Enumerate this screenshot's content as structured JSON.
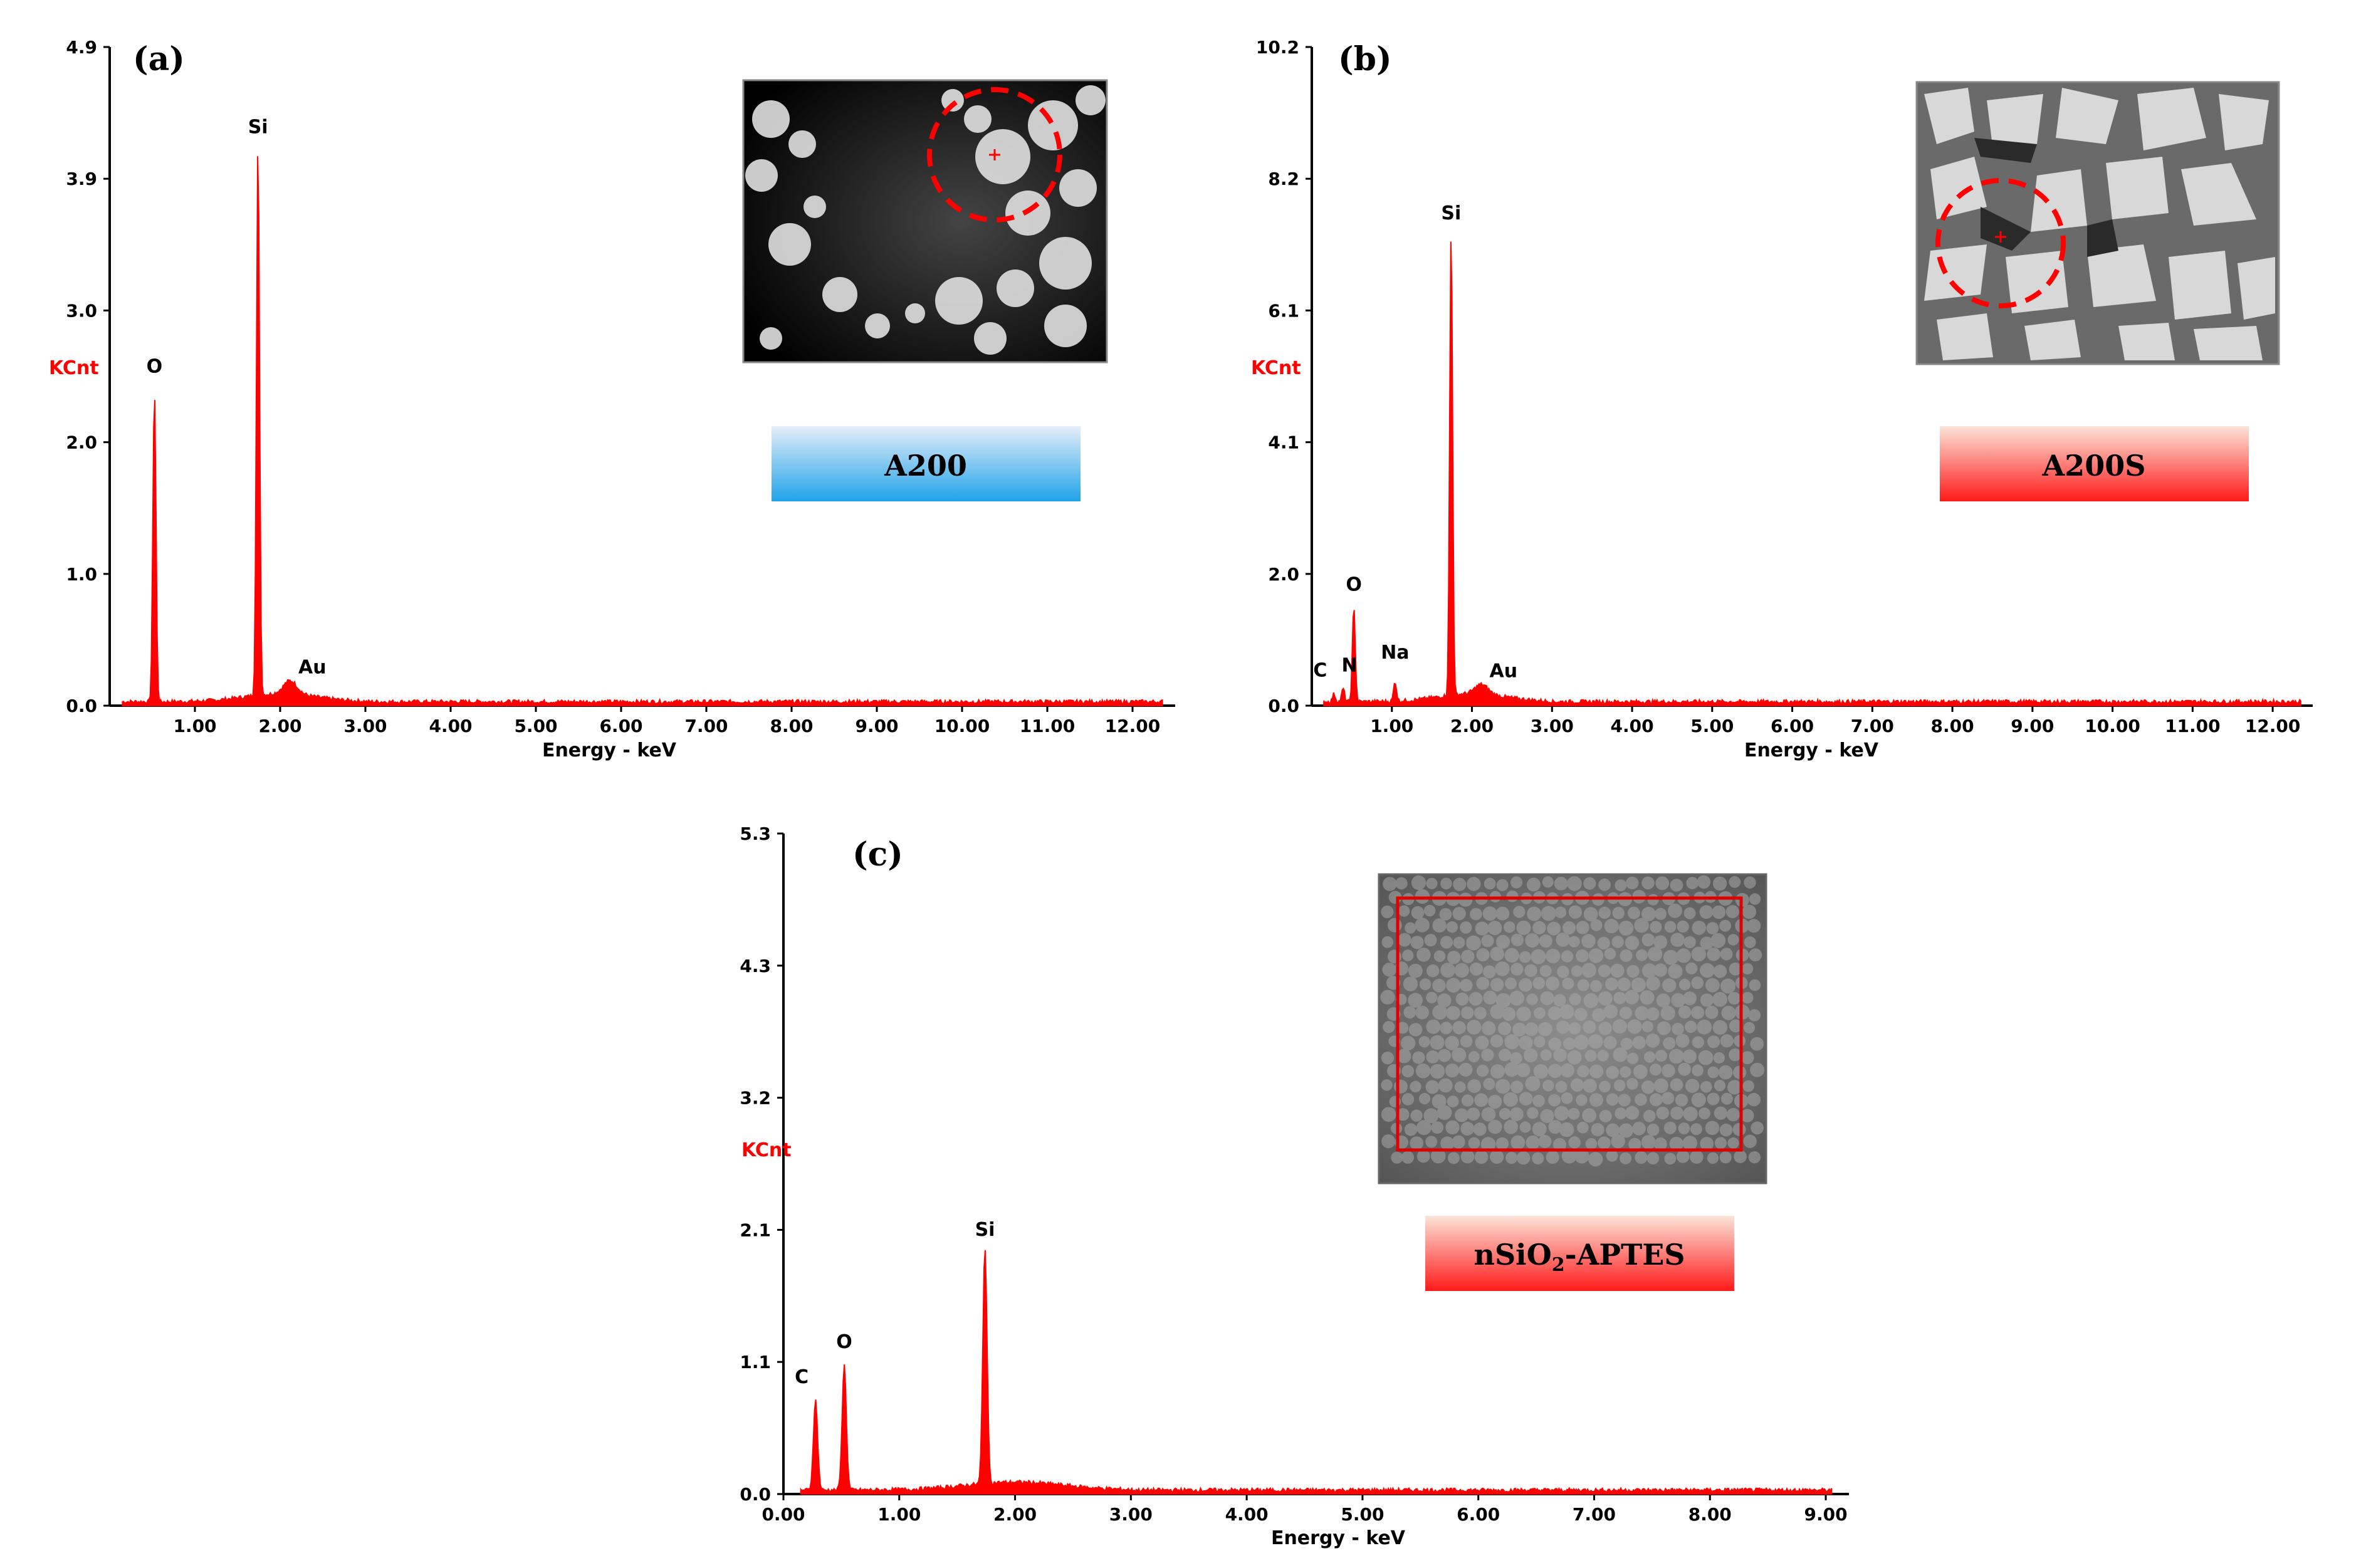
{
  "figure": {
    "colors": {
      "spectrum": "#ff0000",
      "axis": "#000000",
      "ylabel": "#ff0000",
      "badge_blue": "#29aaeb",
      "badge_red": "#ff2020"
    }
  },
  "chart_data": [
    {
      "id": "a",
      "type": "line",
      "panel_label": "(a)",
      "xlabel": "Energy - keV",
      "ylabel": "KCnt",
      "xlim": [
        0,
        12.5
      ],
      "ylim": [
        0,
        4.9
      ],
      "x_ticks": [
        "1.00",
        "2.00",
        "3.00",
        "4.00",
        "5.00",
        "6.00",
        "7.00",
        "8.00",
        "9.00",
        "10.00",
        "11.00",
        "12.00"
      ],
      "y_ticks": [
        "0.0",
        "1.0",
        "2.0",
        "3.0",
        "3.9",
        "4.9"
      ],
      "peaks": [
        {
          "element": "O",
          "energy": 0.525,
          "height": 2.32
        },
        {
          "element": "Si",
          "energy": 1.74,
          "height": 4.1
        },
        {
          "element": "Au",
          "energy": 2.12,
          "height": 0.1
        }
      ],
      "inset_label": "A200",
      "badge_color": "blue"
    },
    {
      "id": "b",
      "type": "line",
      "panel_label": "(b)",
      "xlabel": "Energy - keV",
      "ylabel": "KCnt",
      "xlim": [
        0,
        12.5
      ],
      "ylim": [
        0,
        10.2
      ],
      "x_ticks": [
        "1.00",
        "2.00",
        "3.00",
        "4.00",
        "5.00",
        "6.00",
        "7.00",
        "8.00",
        "9.00",
        "10.00",
        "11.00",
        "12.00"
      ],
      "y_ticks": [
        "0.0",
        "2.0",
        "4.1",
        "6.1",
        "8.2",
        "10.2"
      ],
      "peaks": [
        {
          "element": "C",
          "energy": 0.277,
          "height": 0.12
        },
        {
          "element": "N",
          "energy": 0.392,
          "height": 0.2
        },
        {
          "element": "O",
          "energy": 0.525,
          "height": 1.45
        },
        {
          "element": "Na",
          "energy": 1.04,
          "height": 0.3
        },
        {
          "element": "Si",
          "energy": 1.74,
          "height": 7.2
        },
        {
          "element": "Au",
          "energy": 2.12,
          "height": 0.15
        }
      ],
      "inset_label": "A200S",
      "badge_color": "red"
    },
    {
      "id": "c",
      "type": "line",
      "panel_label": "(c)",
      "xlabel": "Energy - keV",
      "ylabel": "KCnt",
      "xlim": [
        0,
        9.2
      ],
      "ylim": [
        0,
        5.3
      ],
      "x_ticks": [
        "0.00",
        "1.00",
        "2.00",
        "3.00",
        "4.00",
        "5.00",
        "6.00",
        "7.00",
        "8.00",
        "9.00"
      ],
      "y_ticks": [
        "0.0",
        "1.1",
        "2.1",
        "3.2",
        "4.3",
        "5.3"
      ],
      "peaks": [
        {
          "element": "C",
          "energy": 0.277,
          "height": 0.72
        },
        {
          "element": "O",
          "energy": 0.525,
          "height": 1.0
        },
        {
          "element": "Si",
          "energy": 1.74,
          "height": 1.9
        }
      ],
      "inset_label_main": "nSiO",
      "inset_label_sub": "2",
      "inset_label_rest": "-APTES",
      "badge_color": "red"
    }
  ]
}
